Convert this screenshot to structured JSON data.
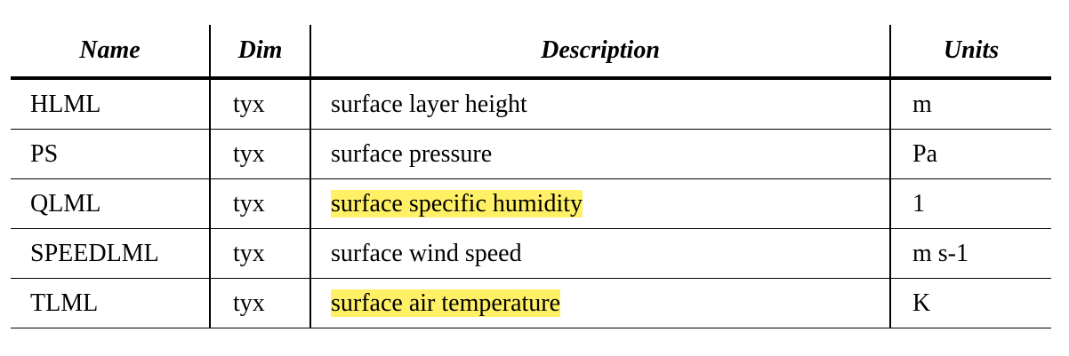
{
  "table": {
    "headers": {
      "name": "Name",
      "dim": "Dim",
      "description": "Description",
      "units": "Units"
    },
    "rows": [
      {
        "name": "HLML",
        "dim": "tyx",
        "description": "surface layer height",
        "units": "m",
        "highlighted": false
      },
      {
        "name": "PS",
        "dim": "tyx",
        "description": "surface pressure",
        "units": "Pa",
        "highlighted": false
      },
      {
        "name": "QLML",
        "dim": "tyx",
        "description": "surface specific humidity",
        "units": "1",
        "highlighted": true
      },
      {
        "name": "SPEEDLML",
        "dim": "tyx",
        "description": "surface wind speed",
        "units": "m s-1",
        "highlighted": false
      },
      {
        "name": "TLML",
        "dim": "tyx",
        "description": "surface air temperature",
        "units": "K",
        "highlighted": true
      }
    ],
    "highlight_color": "#fff066"
  }
}
